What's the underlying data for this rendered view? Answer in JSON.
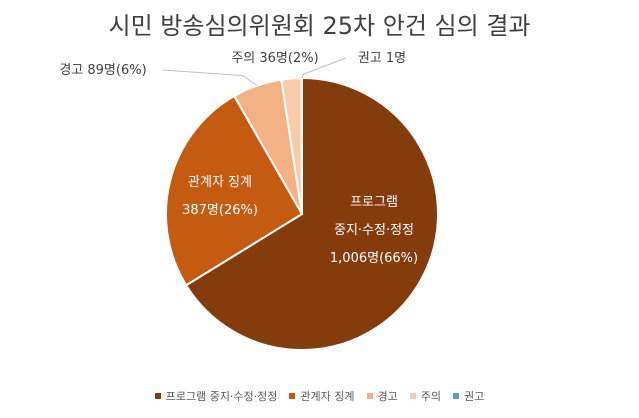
{
  "chart_data": {
    "type": "pie",
    "title": "시민 방송심의위원회 25차 안건 심의 결과",
    "slices": [
      {
        "name": "프로그램 중지·수정·정정",
        "value": 1006,
        "percent": 66,
        "color": "#843C0C",
        "label_lines": [
          "프로그램",
          "중지·수정·정정",
          "1,006명(66%)"
        ],
        "label_color": "#ffffff",
        "label_position": "inside"
      },
      {
        "name": "관계자 징계",
        "value": 387,
        "percent": 26,
        "color": "#C55A11",
        "label_lines": [
          "관계자 징계",
          "387명(26%)"
        ],
        "label_color": "#ffffff",
        "label_position": "inside"
      },
      {
        "name": "경고",
        "value": 89,
        "percent": 6,
        "color": "#F4B183",
        "label_lines": [
          "경고 89명(6%)"
        ],
        "label_color": "#404040",
        "label_position": "outside-left"
      },
      {
        "name": "주의",
        "value": 36,
        "percent": 2,
        "color": "#F8CBAD",
        "label_lines": [
          "주의 36명(2%)"
        ],
        "label_color": "#404040",
        "label_position": "outside-top"
      },
      {
        "name": "권고",
        "value": 1,
        "percent": 0,
        "color": "#5B9BD5",
        "label_lines": [
          "권고 1명"
        ],
        "label_color": "#404040",
        "label_position": "outside-top-right"
      }
    ],
    "legend_position": "bottom"
  }
}
